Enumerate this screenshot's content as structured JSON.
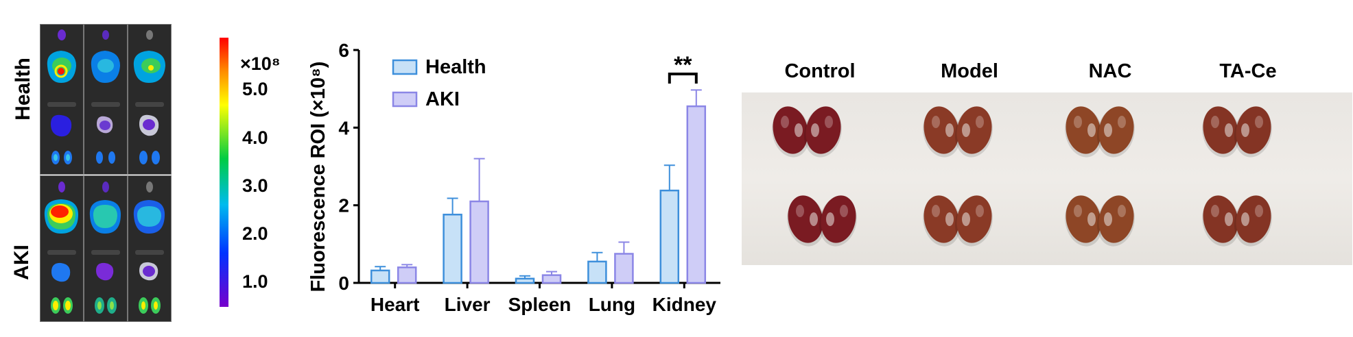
{
  "imaging": {
    "row_labels": [
      "Health",
      "AKI"
    ],
    "colorbar": {
      "exponent_label": "×10⁸",
      "ticks": [
        "5.0",
        "4.0",
        "3.0",
        "2.0",
        "1.0"
      ],
      "colors": [
        "#ff0000",
        "#ffff00",
        "#00cc44",
        "#00bbee",
        "#0000ff",
        "#7700cc"
      ]
    }
  },
  "chart_data": {
    "type": "bar",
    "categories": [
      "Heart",
      "Liver",
      "Spleen",
      "Lung",
      "Kidney"
    ],
    "series": [
      {
        "name": "Health",
        "values": [
          0.32,
          1.76,
          0.11,
          0.55,
          2.38
        ],
        "errors": [
          0.1,
          0.42,
          0.07,
          0.23,
          0.65
        ],
        "color": "#c7e1f7",
        "stroke": "#3d8fdb"
      },
      {
        "name": "AKI",
        "values": [
          0.4,
          2.1,
          0.2,
          0.75,
          4.55
        ],
        "errors": [
          0.07,
          1.1,
          0.09,
          0.3,
          0.42
        ],
        "color": "#cfcdf7",
        "stroke": "#8b86e6"
      }
    ],
    "ylabel": "Fluorescence ROI (×10⁸)",
    "ylim": [
      0,
      6
    ],
    "yticks": [
      "0",
      "2",
      "4",
      "6"
    ],
    "significance": {
      "label": "**",
      "category": "Kidney"
    },
    "legend": "top-left",
    "grid": false
  },
  "photo": {
    "group_labels": [
      "Control",
      "Model",
      "NAC",
      "TA-Ce"
    ],
    "kidney_colors": [
      "#7a1b22",
      "#8a3a26",
      "#8e4626",
      "#843424"
    ]
  }
}
